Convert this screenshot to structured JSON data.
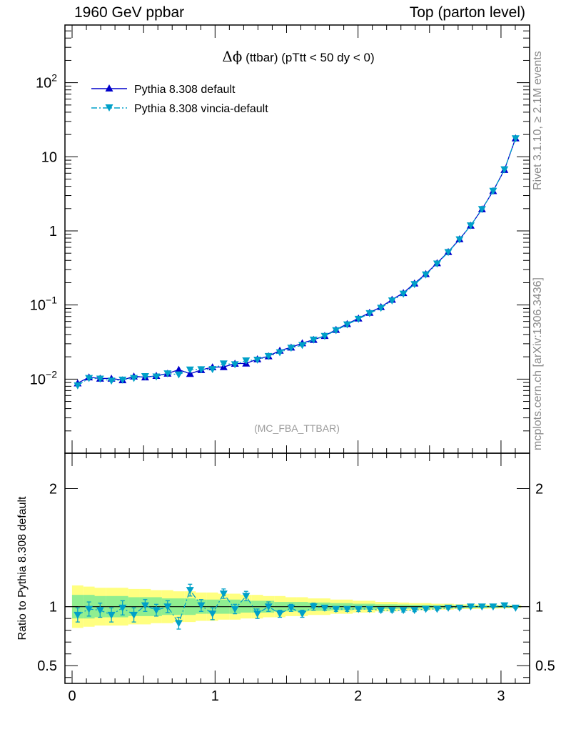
{
  "header": {
    "left": "1960 GeV ppbar",
    "right": "Top (parton level)"
  },
  "side_labels": {
    "rivet": "Rivet 3.1.10, ≥ 2.1M events",
    "mcplots": "mcplots.cern.ch [arXiv:1306.3436]"
  },
  "colors": {
    "default": "#0000cc",
    "vincia": "#00a0c8",
    "band_outer": "#ffff80",
    "band_inner": "#90ee90"
  },
  "chart_data": [
    {
      "type": "line",
      "title_prefix": "Δϕ",
      "title_rest": " (ttbar) (pTtt < 50 dy < 0)",
      "watermark": "(MC_FBA_TTBAR)",
      "yscale": "log",
      "ylim": [
        0.001,
        600
      ],
      "xlim": [
        -0.05,
        3.2
      ],
      "yticks": [
        {
          "value": 0.01,
          "base": "10",
          "exp": "−2"
        },
        {
          "value": 0.1,
          "base": "10",
          "exp": "−1"
        },
        {
          "value": 1,
          "base": "1",
          "exp": ""
        },
        {
          "value": 10,
          "base": "10",
          "exp": ""
        },
        {
          "value": 100,
          "base": "10",
          "exp": "2"
        }
      ],
      "legend_position": "top-left",
      "x": [
        0.039,
        0.118,
        0.196,
        0.275,
        0.353,
        0.432,
        0.511,
        0.589,
        0.668,
        0.746,
        0.825,
        0.903,
        0.982,
        1.06,
        1.139,
        1.217,
        1.296,
        1.374,
        1.453,
        1.532,
        1.61,
        1.689,
        1.767,
        1.846,
        1.924,
        2.003,
        2.081,
        2.16,
        2.238,
        2.317,
        2.395,
        2.474,
        2.553,
        2.631,
        2.71,
        2.788,
        2.867,
        2.945,
        3.024,
        3.102
      ],
      "series": [
        {
          "name": "Pythia 8.308 default",
          "marker": "triangle-up",
          "dash": "solid",
          "values": [
            0.0088,
            0.0106,
            0.0102,
            0.0102,
            0.0097,
            0.0109,
            0.0106,
            0.0111,
            0.0119,
            0.0134,
            0.0118,
            0.0133,
            0.0145,
            0.0146,
            0.0162,
            0.0163,
            0.0186,
            0.0204,
            0.0243,
            0.0268,
            0.0306,
            0.034,
            0.0384,
            0.0464,
            0.0556,
            0.066,
            0.0789,
            0.0941,
            0.1182,
            0.1458,
            0.1962,
            0.2621,
            0.3685,
            0.5211,
            0.7743,
            1.1808,
            1.9653,
            3.4587,
            6.675,
            17.8
          ]
        },
        {
          "name": "Pythia 8.308 vincia-default",
          "marker": "triangle-down",
          "dash": "dashdot",
          "values": [
            0.0082,
            0.0103,
            0.0101,
            0.0095,
            0.0098,
            0.0103,
            0.0109,
            0.0108,
            0.0119,
            0.0115,
            0.0134,
            0.0135,
            0.0136,
            0.0162,
            0.0158,
            0.0178,
            0.0182,
            0.0204,
            0.0229,
            0.0264,
            0.0287,
            0.034,
            0.0381,
            0.0455,
            0.0545,
            0.0647,
            0.0773,
            0.0913,
            0.1146,
            0.1414,
            0.1903,
            0.2568,
            0.3611,
            0.5159,
            0.7665,
            1.181,
            1.965,
            3.459,
            6.742,
            17.7
          ]
        }
      ]
    },
    {
      "type": "line",
      "ylabel": "Ratio to Pythia 8.308 default",
      "ylim": [
        0.35,
        2.3
      ],
      "xlim": [
        -0.05,
        3.2
      ],
      "yticks": [
        0.5,
        1,
        2
      ],
      "xticks": [
        0,
        1,
        2,
        3
      ],
      "x": [
        0.039,
        0.118,
        0.196,
        0.275,
        0.353,
        0.432,
        0.511,
        0.589,
        0.668,
        0.746,
        0.825,
        0.903,
        0.982,
        1.06,
        1.139,
        1.217,
        1.296,
        1.374,
        1.453,
        1.532,
        1.61,
        1.689,
        1.767,
        1.846,
        1.924,
        2.003,
        2.081,
        2.16,
        2.238,
        2.317,
        2.395,
        2.474,
        2.553,
        2.631,
        2.71,
        2.788,
        2.867,
        2.945,
        3.024,
        3.102
      ],
      "band_outer": [
        0.18,
        0.17,
        0.16,
        0.16,
        0.16,
        0.15,
        0.15,
        0.14,
        0.14,
        0.13,
        0.13,
        0.12,
        0.12,
        0.11,
        0.11,
        0.1,
        0.1,
        0.09,
        0.09,
        0.08,
        0.08,
        0.07,
        0.07,
        0.06,
        0.06,
        0.05,
        0.05,
        0.04,
        0.04,
        0.035,
        0.03,
        0.03,
        0.025,
        0.025,
        0.02,
        0.02,
        0.018,
        0.016,
        0.014,
        0.012
      ],
      "band_inner": [
        0.1,
        0.1,
        0.09,
        0.09,
        0.09,
        0.08,
        0.08,
        0.08,
        0.07,
        0.07,
        0.07,
        0.06,
        0.06,
        0.06,
        0.06,
        0.05,
        0.05,
        0.05,
        0.04,
        0.04,
        0.04,
        0.035,
        0.035,
        0.03,
        0.03,
        0.025,
        0.025,
        0.02,
        0.02,
        0.018,
        0.016,
        0.015,
        0.013,
        0.012,
        0.01,
        0.01,
        0.009,
        0.008,
        0.007,
        0.006
      ],
      "series": [
        {
          "name": "Pythia 8.308 vincia-default",
          "values": [
            0.93,
            0.98,
            0.97,
            0.93,
            0.99,
            0.93,
            1.01,
            0.97,
            1.0,
            0.86,
            1.14,
            1.01,
            0.94,
            1.11,
            0.98,
            1.09,
            0.94,
            1.0,
            0.94,
            0.99,
            0.94,
            1.0,
            0.99,
            0.98,
            0.98,
            0.98,
            0.98,
            0.97,
            0.97,
            0.97,
            0.97,
            0.98,
            0.98,
            0.99,
            0.99,
            1.0,
            1.0,
            1.0,
            1.01,
            0.99
          ],
          "errors": [
            0.06,
            0.06,
            0.06,
            0.06,
            0.06,
            0.06,
            0.05,
            0.05,
            0.05,
            0.05,
            0.05,
            0.05,
            0.05,
            0.04,
            0.04,
            0.04,
            0.04,
            0.04,
            0.03,
            0.03,
            0.03,
            0.03,
            0.02,
            0.02,
            0.02,
            0.02,
            0.02,
            0.015,
            0.015,
            0.015,
            0.012,
            0.012,
            0.01,
            0.01,
            0.01,
            0.008,
            0.008,
            0.006,
            0.006,
            0.005
          ]
        }
      ]
    }
  ]
}
